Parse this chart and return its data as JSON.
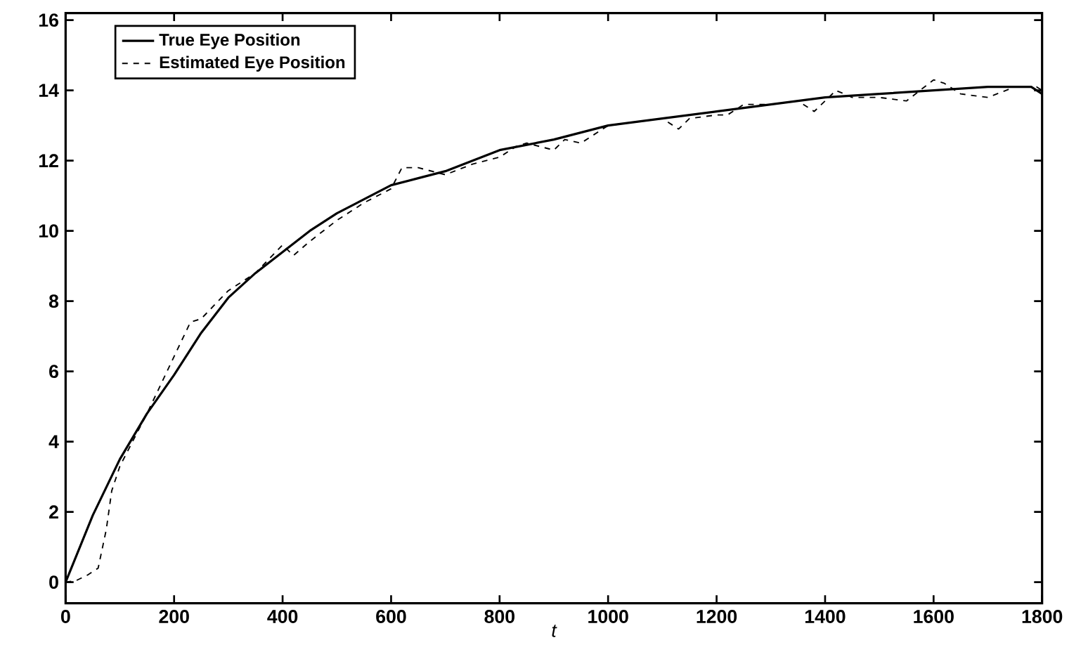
{
  "chart_data": {
    "type": "line",
    "xlabel": "t",
    "xlim": [
      0,
      1800
    ],
    "ylim": [
      -0.6,
      16.2
    ],
    "xticks": [
      0,
      200,
      400,
      600,
      800,
      1000,
      1200,
      1400,
      1600,
      1800
    ],
    "yticks": [
      0,
      2,
      4,
      6,
      8,
      10,
      12,
      14,
      16
    ],
    "legend": "top left",
    "grid": false,
    "series": [
      {
        "name": "True Eye Position",
        "color": "#000000",
        "line_style": "solid",
        "x": [
          0,
          50,
          100,
          150,
          200,
          250,
          300,
          350,
          400,
          450,
          500,
          550,
          600,
          650,
          700,
          750,
          800,
          900,
          1000,
          1100,
          1200,
          1300,
          1400,
          1500,
          1600,
          1700,
          1780,
          1800
        ],
        "values": [
          0,
          1.9,
          3.5,
          4.8,
          5.9,
          7.1,
          8.1,
          8.8,
          9.4,
          10.0,
          10.5,
          10.9,
          11.3,
          11.5,
          11.7,
          12.0,
          12.3,
          12.6,
          13.0,
          13.2,
          13.4,
          13.6,
          13.8,
          13.9,
          14.0,
          14.1,
          14.1,
          13.9
        ]
      },
      {
        "name": "Estimated Eye Position",
        "color": "#000000",
        "line_style": "dashed",
        "x": [
          0,
          20,
          40,
          60,
          75,
          85,
          100,
          150,
          230,
          250,
          300,
          350,
          400,
          420,
          450,
          500,
          550,
          600,
          620,
          650,
          700,
          750,
          800,
          830,
          850,
          900,
          920,
          950,
          1000,
          1050,
          1100,
          1130,
          1150,
          1200,
          1220,
          1250,
          1300,
          1350,
          1380,
          1420,
          1450,
          1500,
          1550,
          1600,
          1620,
          1650,
          1700,
          1750,
          1790,
          1800
        ],
        "values": [
          0,
          0.05,
          0.2,
          0.4,
          1.5,
          2.6,
          3.3,
          4.8,
          7.4,
          7.5,
          8.3,
          8.8,
          9.6,
          9.3,
          9.7,
          10.3,
          10.8,
          11.2,
          11.8,
          11.8,
          11.6,
          11.9,
          12.1,
          12.4,
          12.5,
          12.3,
          12.6,
          12.5,
          13.0,
          13.1,
          13.2,
          12.9,
          13.2,
          13.3,
          13.3,
          13.6,
          13.6,
          13.7,
          13.4,
          14.0,
          13.8,
          13.8,
          13.7,
          14.3,
          14.2,
          13.9,
          13.8,
          14.1,
          14.1,
          14.0
        ]
      }
    ]
  }
}
